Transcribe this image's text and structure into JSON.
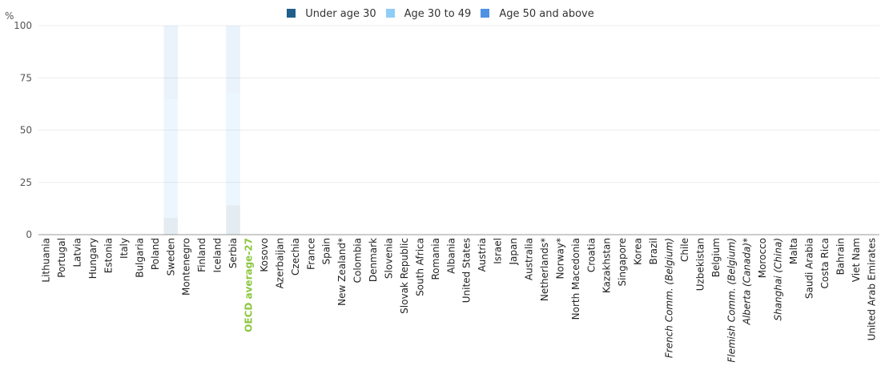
{
  "legend": {
    "items": [
      {
        "label": "Under age 30",
        "color": "#1f5f8b"
      },
      {
        "label": "Age 30 to 49",
        "color": "#8ecdf7"
      },
      {
        "label": "Age 50 and above",
        "color": "#4f91e3"
      }
    ]
  },
  "chart_data": {
    "type": "bar",
    "stacked": true,
    "y_unit": "%",
    "ylim": [
      0,
      100
    ],
    "yticks": [
      0,
      25,
      50,
      75,
      100
    ],
    "grid": true,
    "legend_position": "top",
    "categories": [
      "Lithuania",
      "Portugal",
      "Latvia",
      "Hungary",
      "Estonia",
      "Italy",
      "Bulgaria",
      "Poland",
      "Sweden",
      "Montenegro",
      "Finland",
      "Iceland",
      "Serbia",
      "OECD average-27",
      "Kosovo",
      "Azerbaijan",
      "Czechia",
      "France",
      "Spain",
      "New Zealand*",
      "Colombia",
      "Denmark",
      "Slovenia",
      "Slovak Republic",
      "South Africa",
      "Romania",
      "Albania",
      "United States",
      "Austria",
      "Israel",
      "Japan",
      "Australia",
      "Netherlands*",
      "Norway*",
      "North Macedonia",
      "Croatia",
      "Kazakhstan",
      "Singapore",
      "Korea",
      "Brazil",
      "French Comm. (Belgium)",
      "Chile",
      "Uzbekistan",
      "Belgium",
      "Flemish Comm. (Belgium)",
      "Alberta (Canada)*",
      "Morocco",
      "Shanghai (China)",
      "Malta",
      "Saudi Arabia",
      "Costa Rica",
      "Bahrain",
      "Viet Nam",
      "United Arab Emirates"
    ],
    "italic_categories": [
      "French Comm. (Belgium)",
      "Flemish Comm. (Belgium)",
      "Alberta (Canada)*",
      "Shanghai (China)"
    ],
    "highlight_category": "OECD average-27",
    "series": [
      {
        "name": "Under age 30",
        "values": [
          null,
          null,
          null,
          null,
          null,
          null,
          null,
          null,
          8,
          null,
          null,
          null,
          14,
          null,
          null,
          null,
          null,
          null,
          null,
          null,
          null,
          null,
          null,
          null,
          null,
          null,
          null,
          null,
          null,
          null,
          null,
          null,
          null,
          null,
          null,
          null,
          null,
          null,
          null,
          null,
          null,
          null,
          null,
          null,
          null,
          null,
          null,
          null,
          null,
          null,
          null,
          null,
          null,
          null
        ]
      },
      {
        "name": "Age 30 to 49",
        "values": [
          null,
          null,
          null,
          null,
          null,
          null,
          null,
          null,
          57,
          null,
          null,
          null,
          54,
          null,
          null,
          null,
          null,
          null,
          null,
          null,
          null,
          null,
          null,
          null,
          null,
          null,
          null,
          null,
          null,
          null,
          null,
          null,
          null,
          null,
          null,
          null,
          null,
          null,
          null,
          null,
          null,
          null,
          null,
          null,
          null,
          null,
          null,
          null,
          null,
          null,
          null,
          null,
          null,
          null
        ]
      },
      {
        "name": "Age 50 and above",
        "values": [
          null,
          null,
          null,
          null,
          null,
          null,
          null,
          null,
          35,
          null,
          null,
          null,
          32,
          null,
          null,
          null,
          null,
          null,
          null,
          null,
          null,
          null,
          null,
          null,
          null,
          null,
          null,
          null,
          null,
          null,
          null,
          null,
          null,
          null,
          null,
          null,
          null,
          null,
          null,
          null,
          null,
          null,
          null,
          null,
          null,
          null,
          null,
          null,
          null,
          null,
          null,
          null,
          null,
          null
        ]
      }
    ]
  }
}
